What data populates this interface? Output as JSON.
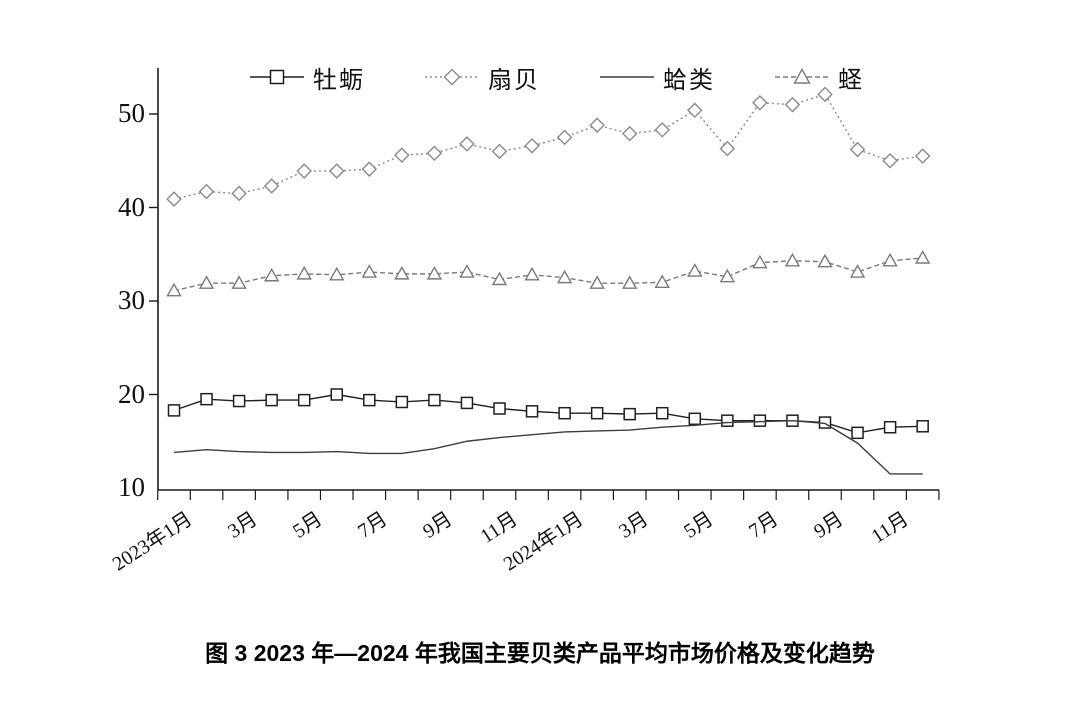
{
  "caption": "图 3 2023 年—2024 年我国主要贝类产品平均市场价格及变化趋势",
  "y_axis": {
    "tick_labels": [
      "10",
      "20",
      "30",
      "40",
      "50"
    ],
    "min": 10,
    "max": 50
  },
  "x_axis": {
    "visible_labels": [
      {
        "text": "2023年1月",
        "month_index": 0
      },
      {
        "text": "3月",
        "month_index": 2
      },
      {
        "text": "5月",
        "month_index": 4
      },
      {
        "text": "7月",
        "month_index": 6
      },
      {
        "text": "9月",
        "month_index": 8
      },
      {
        "text": "11月",
        "month_index": 10
      },
      {
        "text": "2024年1月",
        "month_index": 12
      },
      {
        "text": "3月",
        "month_index": 14
      },
      {
        "text": "5月",
        "month_index": 16
      },
      {
        "text": "7月",
        "month_index": 18
      },
      {
        "text": "9月",
        "month_index": 20
      },
      {
        "text": "11月",
        "month_index": 22
      }
    ]
  },
  "legend": [
    {
      "key": "muli",
      "label": "牡蛎",
      "marker": "square",
      "line_style": "solid",
      "color": "#1f1f1f"
    },
    {
      "key": "shanbei",
      "label": "扇贝",
      "marker": "diamond",
      "line_style": "dotted",
      "color": "#8a8a8a"
    },
    {
      "key": "gelei",
      "label": "蛤类",
      "marker": "none",
      "line_style": "solid",
      "color": "#3d3d3d"
    },
    {
      "key": "cheng",
      "label": "蛏",
      "marker": "triangle",
      "line_style": "dashed",
      "color": "#7a7a7a"
    }
  ],
  "chart_data": {
    "type": "line",
    "title": "图 3 2023 年—2024 年我国主要贝类产品平均市场价格及变化趋势",
    "categories": [
      "2023年1月",
      "2023年2月",
      "2023年3月",
      "2023年4月",
      "2023年5月",
      "2023年6月",
      "2023年7月",
      "2023年8月",
      "2023年9月",
      "2023年10月",
      "2023年11月",
      "2023年12月",
      "2024年1月",
      "2024年2月",
      "2024年3月",
      "2024年4月",
      "2024年5月",
      "2024年6月",
      "2024年7月",
      "2024年8月",
      "2024年9月",
      "2024年10月",
      "2024年11月",
      "2024年12月"
    ],
    "ylim": [
      10,
      50
    ],
    "grid": false,
    "legend_position": "top",
    "series": [
      {
        "name": "牡蛎",
        "marker": "square",
        "line_style": "solid",
        "color": "#1f1f1f",
        "values": [
          18.3,
          19.5,
          19.3,
          19.4,
          19.4,
          20.0,
          19.4,
          19.2,
          19.4,
          19.1,
          18.5,
          18.2,
          18.0,
          18.0,
          17.9,
          18.0,
          17.4,
          17.2,
          17.2,
          17.2,
          17.0,
          15.9,
          16.5,
          16.6
        ]
      },
      {
        "name": "扇贝",
        "marker": "diamond",
        "line_style": "dotted",
        "color": "#8a8a8a",
        "values": [
          40.9,
          41.7,
          41.5,
          42.3,
          43.9,
          43.9,
          44.1,
          45.6,
          45.8,
          46.8,
          46.0,
          46.6,
          47.5,
          48.8,
          47.9,
          48.3,
          50.4,
          46.3,
          51.2,
          51.0,
          52.1,
          46.2,
          45.0,
          45.5
        ]
      },
      {
        "name": "蛤类",
        "marker": "none",
        "line_style": "solid",
        "color": "#3d3d3d",
        "values": [
          13.8,
          14.1,
          13.9,
          13.8,
          13.8,
          13.9,
          13.7,
          13.7,
          14.2,
          15.0,
          15.4,
          15.7,
          16.0,
          16.1,
          16.2,
          16.5,
          16.7,
          17.0,
          17.1,
          17.2,
          16.9,
          14.8,
          11.5,
          11.5
        ]
      },
      {
        "name": "蛏",
        "marker": "triangle",
        "line_style": "dashed",
        "color": "#7a7a7a",
        "values": [
          31.1,
          31.9,
          31.9,
          32.7,
          32.9,
          32.8,
          33.1,
          32.9,
          32.9,
          33.1,
          32.3,
          32.8,
          32.5,
          31.9,
          31.9,
          32.0,
          33.2,
          32.6,
          34.1,
          34.3,
          34.2,
          33.1,
          34.3,
          34.6
        ]
      }
    ]
  }
}
